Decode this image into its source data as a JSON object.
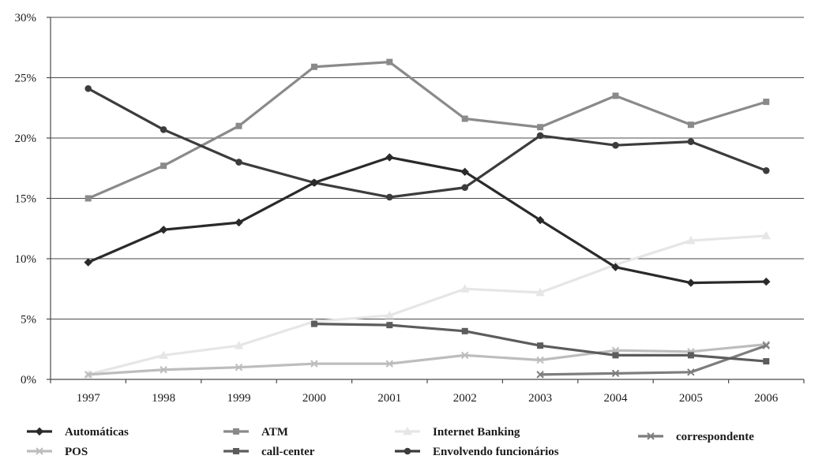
{
  "chart_data": {
    "type": "line",
    "title": "",
    "xlabel": "",
    "ylabel": "",
    "categories": [
      "1997",
      "1998",
      "1999",
      "2000",
      "2001",
      "2002",
      "2003",
      "2004",
      "2005",
      "2006"
    ],
    "ylim": [
      0,
      30
    ],
    "yticks": [
      0,
      5,
      10,
      15,
      20,
      25,
      30
    ],
    "ytick_labels": [
      "0%",
      "5%",
      "10%",
      "15%",
      "20%",
      "25%",
      "30%"
    ],
    "grid": "horizontal",
    "legend_position": "bottom",
    "series": [
      {
        "name": "Automáticas",
        "color": "#2a2a2a",
        "marker": "diamond",
        "values": [
          9.7,
          12.4,
          13.0,
          16.3,
          18.4,
          17.2,
          13.2,
          9.3,
          8.0,
          8.1
        ]
      },
      {
        "name": "ATM",
        "color": "#8a8a8a",
        "marker": "square",
        "values": [
          15.0,
          17.7,
          21.0,
          25.9,
          26.3,
          21.6,
          20.9,
          23.5,
          21.1,
          23.0
        ]
      },
      {
        "name": "Internet Banking",
        "color": "#e6e6e6",
        "marker": "triangle",
        "values": [
          0.4,
          2.0,
          2.8,
          4.8,
          5.3,
          7.5,
          7.2,
          9.5,
          11.5,
          11.9
        ]
      },
      {
        "name": "correspondente",
        "color": "#7d7d7d",
        "marker": "x",
        "values": [
          null,
          null,
          null,
          null,
          null,
          null,
          0.4,
          0.5,
          0.6,
          2.8
        ]
      },
      {
        "name": "POS",
        "color": "#bdbdbd",
        "marker": "x",
        "values": [
          0.4,
          0.8,
          1.0,
          1.3,
          1.3,
          2.0,
          1.6,
          2.4,
          2.3,
          2.9
        ]
      },
      {
        "name": "call-center",
        "color": "#5c5c5c",
        "marker": "square",
        "values": [
          null,
          null,
          null,
          4.6,
          4.5,
          4.0,
          2.8,
          2.0,
          2.0,
          1.5
        ]
      },
      {
        "name": "Envolvendo funcionários",
        "color": "#3c3c3c",
        "marker": "circle",
        "values": [
          24.1,
          20.7,
          18.0,
          16.3,
          15.1,
          15.9,
          20.2,
          19.4,
          19.7,
          17.3
        ]
      }
    ]
  }
}
